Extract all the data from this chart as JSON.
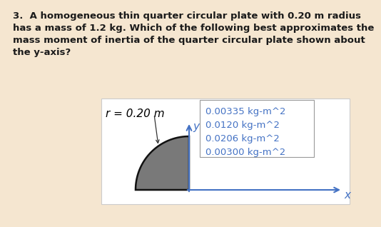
{
  "background_color": "#f5e6d0",
  "white_box_color": "#ffffff",
  "question_text_line1": "3.  A homogeneous thin quarter circular plate with 0.20 m radius",
  "question_text_line2": "has a mass of 1.2 kg. Which of the following best approximates the",
  "question_text_line3": "mass moment of inertia of the quarter circular plate shown about",
  "question_text_line4": "the y-axis?",
  "radius_label": "r = 0.20 m",
  "choices": [
    "0.00335 kg-m^2",
    "0.0120 kg-m^2",
    "0.0206 kg-m^2",
    "0.00300 kg-m^2"
  ],
  "axis_label_x": "x",
  "axis_label_y": "y",
  "plate_color": "#797979",
  "plate_edge_color": "#111111",
  "choices_box_bg": "#ffffff",
  "choices_box_edge": "#999999",
  "text_color": "#1a1a1a",
  "question_fontsize": 9.5,
  "choice_fontsize": 9.5,
  "axis_color": "#4472c4",
  "choice_color": "#4472c4",
  "radius_label_color": "#000000",
  "diagram_box_edge": "#cccccc"
}
